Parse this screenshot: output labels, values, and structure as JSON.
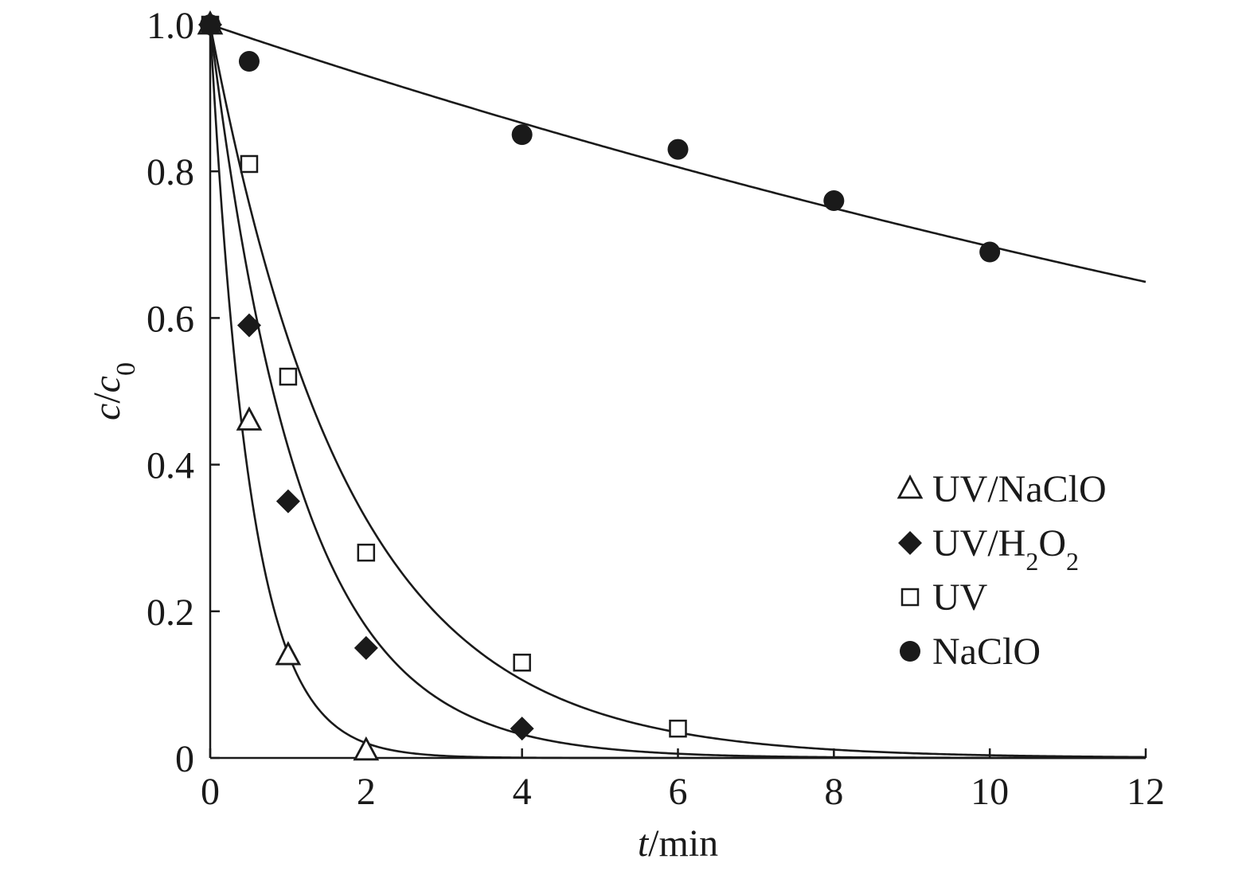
{
  "chart_data": {
    "type": "scatter",
    "title": "",
    "xlabel_italic": "t",
    "xlabel_rest": "/min",
    "ylabel_c": "c",
    "ylabel_slash": "/",
    "ylabel_c0": "c",
    "ylabel_sub": "0",
    "xlim": [
      0,
      12
    ],
    "ylim": [
      0,
      1.0
    ],
    "xticks": [
      0,
      2,
      4,
      6,
      8,
      10,
      12
    ],
    "xtick_labels": [
      "0",
      "2",
      "4",
      "6",
      "8",
      "10",
      "12"
    ],
    "yticks": [
      0,
      0.2,
      0.4,
      0.6,
      0.8,
      1.0
    ],
    "ytick_labels": [
      "0",
      "0.2",
      "0.4",
      "0.6",
      "0.8",
      "1.0"
    ],
    "grid": false,
    "legend_position": "right",
    "series": [
      {
        "name": "UV/NaClO",
        "legend_parts": [
          "UV/NaClO"
        ],
        "marker": "triangle-open",
        "x": [
          0,
          0.5,
          1,
          2
        ],
        "y": [
          1.0,
          0.46,
          0.14,
          0.01
        ],
        "fit_k": 1.95
      },
      {
        "name": "UV/H2O2",
        "legend_parts": [
          "UV/H",
          "2",
          "O",
          "2"
        ],
        "marker": "diamond-filled",
        "x": [
          0,
          0.5,
          1,
          2,
          4
        ],
        "y": [
          1.0,
          0.59,
          0.35,
          0.15,
          0.04
        ],
        "fit_k": 0.86
      },
      {
        "name": "UV",
        "legend_parts": [
          "UV"
        ],
        "marker": "square-open",
        "x": [
          0,
          0.5,
          1,
          2,
          4,
          6
        ],
        "y": [
          1.0,
          0.81,
          0.52,
          0.28,
          0.13,
          0.04
        ],
        "fit_k": 0.56
      },
      {
        "name": "NaClO",
        "legend_parts": [
          "NaClO"
        ],
        "marker": "circle-filled",
        "x": [
          0,
          0.5,
          4,
          6,
          8,
          10
        ],
        "y": [
          1.0,
          0.95,
          0.85,
          0.83,
          0.76,
          0.69
        ],
        "fit_k": 0.036
      }
    ]
  }
}
